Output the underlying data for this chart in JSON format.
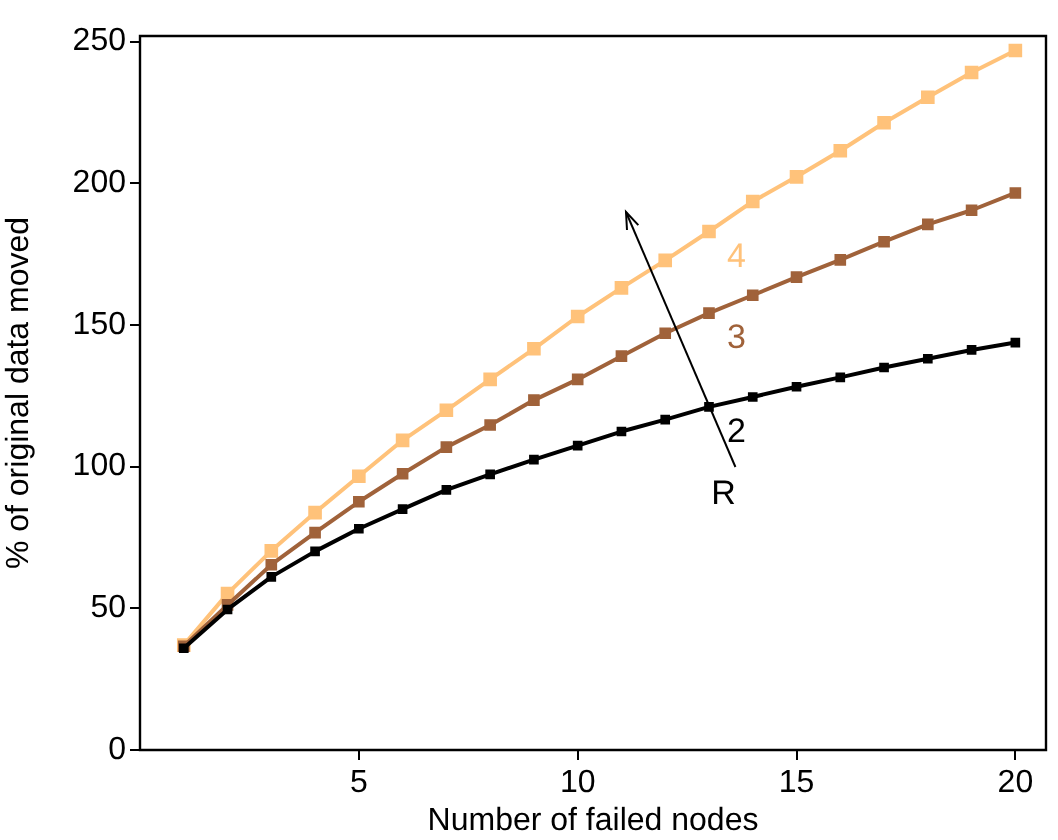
{
  "chart_data": {
    "type": "line",
    "xlabel": "Number of failed nodes",
    "ylabel": "% of original data moved",
    "x": [
      1,
      2,
      3,
      4,
      5,
      6,
      7,
      8,
      9,
      10,
      11,
      12,
      13,
      14,
      15,
      16,
      17,
      18,
      19,
      20
    ],
    "series": [
      {
        "name": "2",
        "color": "#000000",
        "values": [
          35.9,
          49.6,
          61.1,
          70.1,
          78.1,
          85,
          91.8,
          97.3,
          102.5,
          107.4,
          112.4,
          116.6,
          121.1,
          124.6,
          128.2,
          131.5,
          135,
          138.1,
          141.2,
          143.8
        ]
      },
      {
        "name": "3",
        "color": "#a0623a",
        "values": [
          36.6,
          51.2,
          65.4,
          76.7,
          87.6,
          97.5,
          106.9,
          114.7,
          123.5,
          130.8,
          139,
          147.1,
          154.2,
          160.5,
          166.9,
          173,
          179.4,
          185.5,
          190.5,
          196.6
        ]
      },
      {
        "name": "4",
        "color": "#ffc27a",
        "values": [
          37,
          55.2,
          70.3,
          83.8,
          96.6,
          109.3,
          119.9,
          130.8,
          141.6,
          153,
          163.1,
          172.8,
          183,
          193.6,
          202.3,
          211.5,
          221.4,
          230.4,
          239.1,
          246.9
        ]
      }
    ],
    "annotations": [
      "R"
    ],
    "xlim": [
      0,
      20.7
    ],
    "xticks": [
      5,
      10,
      15,
      20
    ],
    "ylim": [
      0,
      252
    ],
    "yticks": [
      0,
      50,
      100,
      150,
      200,
      250
    ],
    "grid": false,
    "legend": false,
    "marker": "square",
    "line_style": "solid"
  }
}
